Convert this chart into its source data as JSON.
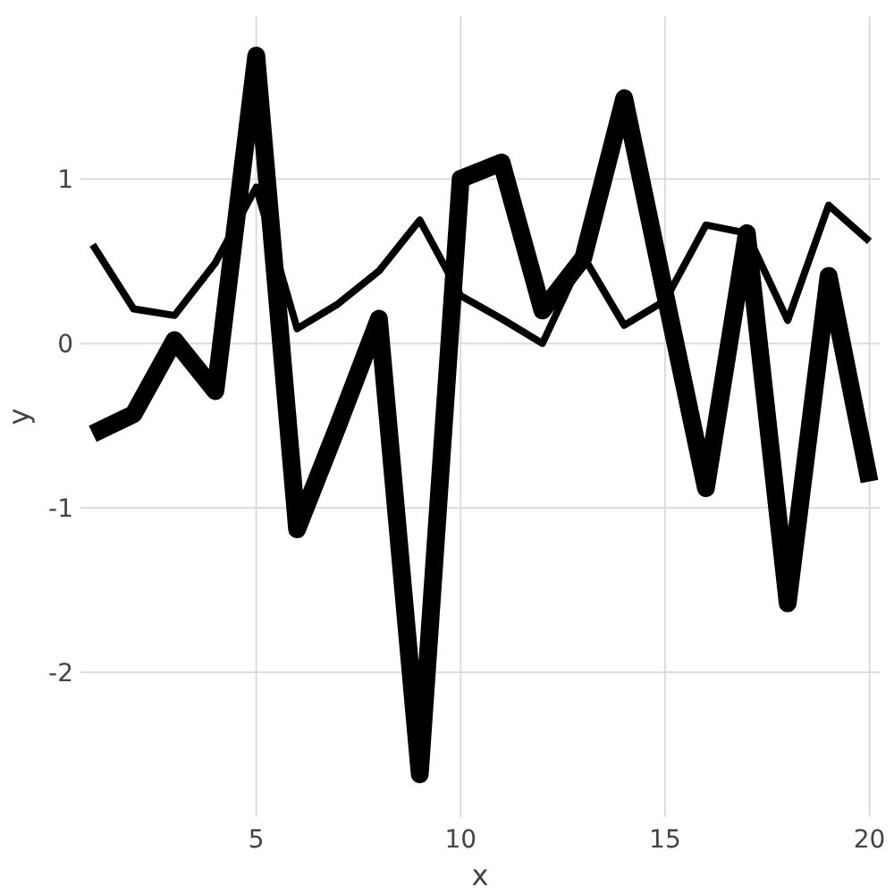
{
  "chart_data": {
    "type": "line",
    "xlabel": "x",
    "ylabel": "y",
    "x": [
      1,
      2,
      3,
      4,
      5,
      6,
      7,
      8,
      9,
      10,
      11,
      12,
      13,
      14,
      15,
      16,
      17,
      18,
      19,
      20
    ],
    "series": [
      {
        "color": "#000000",
        "values": [
          -0.55,
          -0.43,
          0.02,
          -0.29,
          1.75,
          -1.13,
          -0.5,
          0.15,
          -2.62,
          1.0,
          1.1,
          0.2,
          0.52,
          1.49,
          0.3,
          -0.88,
          0.67,
          -1.58,
          0.41,
          -0.84
        ]
      },
      {
        "color": "#000000",
        "values": [
          0.6,
          0.21,
          0.17,
          0.49,
          0.95,
          0.09,
          0.24,
          0.44,
          0.75,
          0.29,
          0.15,
          0.0,
          0.53,
          0.11,
          0.26,
          0.72,
          0.67,
          0.14,
          0.84,
          0.62
        ]
      }
    ],
    "xlim": [
      0.7,
      20.25
    ],
    "ylim": [
      -2.88,
      1.99
    ],
    "xticks": [
      5,
      10,
      15,
      20
    ],
    "yticks": [
      -2,
      -1,
      0,
      1
    ],
    "grid": true,
    "marker": "none",
    "line_style": "solid"
  }
}
